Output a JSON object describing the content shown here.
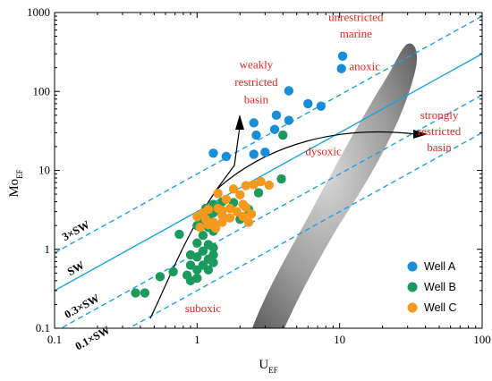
{
  "chart_data": {
    "type": "scatter",
    "xscale": "log",
    "yscale": "log",
    "xlim": [
      0.1,
      100
    ],
    "ylim": [
      0.1,
      1000
    ],
    "xlabel_main": "U",
    "xlabel_sub": "EF",
    "ylabel_main": "Mo",
    "ylabel_sub": "EF",
    "x_ticks": [
      {
        "value": 0.1,
        "label": "0.1"
      },
      {
        "value": 1,
        "label": "1"
      },
      {
        "value": 10,
        "label": "10"
      },
      {
        "value": 100,
        "label": "100"
      }
    ],
    "y_ticks": [
      {
        "value": 0.1,
        "label": "0.1"
      },
      {
        "value": 1,
        "label": "1"
      },
      {
        "value": 10,
        "label": "10"
      },
      {
        "value": 100,
        "label": "100"
      },
      {
        "value": 1000,
        "label": "1000"
      }
    ],
    "reference_lines": [
      {
        "label": "3×SW",
        "ratio": 9.0,
        "style": "dashed"
      },
      {
        "label": "SW",
        "ratio": 3.0,
        "style": "solid"
      },
      {
        "label": "0.3×SW",
        "ratio": 0.9,
        "style": "dashed"
      },
      {
        "label": "0.1×SW",
        "ratio": 0.3,
        "style": "dashed"
      }
    ],
    "region_labels": [
      {
        "text": "unrestricted",
        "x": 13,
        "y": 780
      },
      {
        "text": "marine",
        "x": 13,
        "y": 480
      },
      {
        "text": "anoxic",
        "x": 15,
        "y": 185
      },
      {
        "text": "weakly",
        "x": 2.6,
        "y": 195
      },
      {
        "text": "restricted",
        "x": 2.6,
        "y": 118
      },
      {
        "text": "basin",
        "x": 2.6,
        "y": 71
      },
      {
        "text": "strongly",
        "x": 50,
        "y": 45
      },
      {
        "text": "restricted",
        "x": 50,
        "y": 28
      },
      {
        "text": "basin",
        "x": 50,
        "y": 17.5
      },
      {
        "text": "dysoxic",
        "x": 7.7,
        "y": 15.5
      },
      {
        "text": "suboxic",
        "x": 1.1,
        "y": 0.16
      }
    ],
    "series": [
      {
        "name": "Well A",
        "color": "#1a8dd8",
        "points": [
          [
            10.5,
            280
          ],
          [
            10.3,
            195
          ],
          [
            4.4,
            102
          ],
          [
            6.0,
            70
          ],
          [
            7.4,
            65
          ],
          [
            3.6,
            50
          ],
          [
            4.4,
            43
          ],
          [
            2.5,
            40
          ],
          [
            2.6,
            28
          ],
          [
            3.5,
            33
          ],
          [
            1.3,
            16.5
          ],
          [
            1.6,
            15
          ],
          [
            2.5,
            16
          ],
          [
            3.0,
            17
          ]
        ]
      },
      {
        "name": "Well B",
        "color": "#1a9a5c",
        "points": [
          [
            4.0,
            28
          ],
          [
            3.9,
            7.8
          ],
          [
            0.43,
            0.28
          ],
          [
            0.37,
            0.28
          ],
          [
            0.55,
            0.45
          ],
          [
            0.68,
            0.52
          ],
          [
            0.75,
            1.55
          ],
          [
            1.0,
            2.0
          ],
          [
            1.1,
            2.3
          ],
          [
            1.2,
            2.5
          ],
          [
            1.3,
            2.9
          ],
          [
            1.2,
            1.9
          ],
          [
            1.1,
            1.5
          ],
          [
            1.3,
            1.7
          ],
          [
            1.0,
            1.2
          ],
          [
            1.2,
            1.15
          ],
          [
            1.3,
            1.05
          ],
          [
            1.1,
            0.95
          ],
          [
            0.9,
            0.85
          ],
          [
            1.0,
            0.8
          ],
          [
            1.2,
            0.75
          ],
          [
            1.3,
            0.68
          ],
          [
            1.1,
            0.63
          ],
          [
            0.9,
            0.63
          ],
          [
            1.0,
            0.55
          ],
          [
            1.2,
            0.55
          ],
          [
            0.85,
            0.47
          ],
          [
            0.9,
            0.4
          ],
          [
            1.0,
            0.43
          ],
          [
            1.3,
            0.85
          ],
          [
            1.3,
            3.7
          ],
          [
            1.15,
            3.3
          ],
          [
            1.5,
            4.0
          ],
          [
            2.3,
            3.2
          ],
          [
            2.0,
            2.4
          ],
          [
            1.8,
            3.9
          ],
          [
            2.7,
            5.2
          ]
        ]
      },
      {
        "name": "Well C",
        "color": "#f39a1e",
        "points": [
          [
            1.4,
            5.1
          ],
          [
            1.6,
            4.3
          ],
          [
            1.8,
            5.8
          ],
          [
            2.0,
            4.9
          ],
          [
            2.2,
            6.4
          ],
          [
            2.5,
            6.6
          ],
          [
            2.8,
            7.2
          ],
          [
            3.2,
            6.5
          ],
          [
            2.1,
            3.7
          ],
          [
            1.1,
            2.9
          ],
          [
            1.2,
            3.2
          ],
          [
            1.4,
            3.3
          ],
          [
            1.5,
            3.1
          ],
          [
            1.7,
            3.3
          ],
          [
            1.9,
            3.0
          ],
          [
            2.2,
            3.4
          ],
          [
            1.0,
            2.6
          ],
          [
            1.15,
            2.4
          ],
          [
            1.3,
            2.2
          ],
          [
            1.5,
            2.7
          ],
          [
            1.7,
            2.5
          ],
          [
            2.1,
            2.6
          ],
          [
            2.4,
            2.8
          ],
          [
            1.05,
            1.9
          ],
          [
            1.2,
            2.05
          ],
          [
            1.5,
            2.2
          ],
          [
            2.3,
            2.2
          ],
          [
            1.35,
            1.85
          ]
        ]
      }
    ],
    "legend": {
      "placement": "bottom-right"
    }
  }
}
